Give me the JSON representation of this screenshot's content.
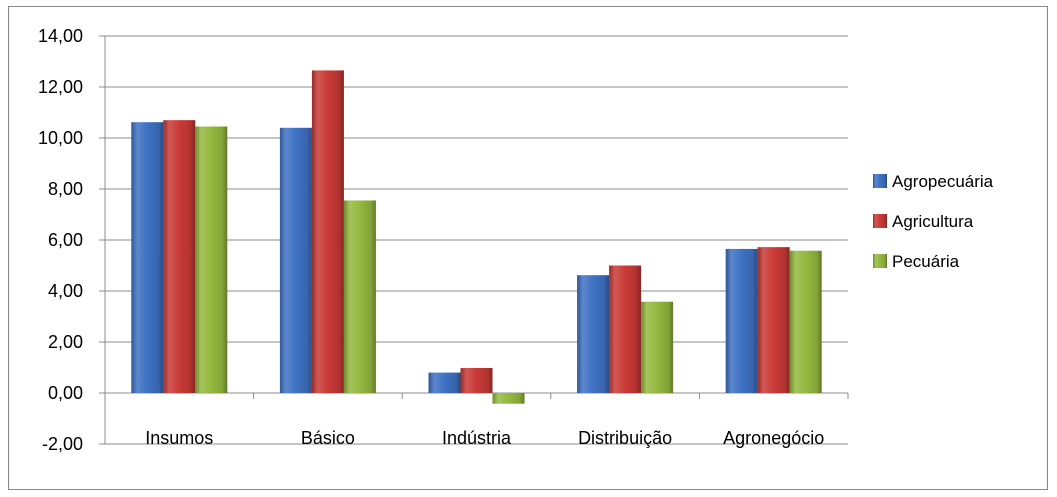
{
  "chart_data": {
    "type": "bar",
    "title": "",
    "xlabel": "",
    "ylabel": "",
    "categories": [
      "Insumos",
      "Básico",
      "Indústria",
      "Distribuição",
      "Agronegócio"
    ],
    "series": [
      {
        "name": "Agropecuária",
        "color": "#3f72c4",
        "values": [
          10.62,
          10.4,
          0.8,
          4.62,
          5.65
        ]
      },
      {
        "name": "Agricultura",
        "color": "#c93a37",
        "values": [
          10.7,
          12.65,
          0.98,
          5.0,
          5.72
        ]
      },
      {
        "name": "Pecuária",
        "color": "#94b93f",
        "values": [
          10.45,
          7.55,
          -0.42,
          3.58,
          5.58
        ]
      }
    ],
    "ylim": [
      -2,
      14
    ],
    "y_ticks": [
      "14,00",
      "12,00",
      "10,00",
      "8,00",
      "6,00",
      "4,00",
      "2,00",
      "0,00",
      "-2,00"
    ],
    "y_tick_values": [
      14,
      12,
      10,
      8,
      6,
      4,
      2,
      0,
      -2
    ],
    "grid": true,
    "legend_position": "right"
  }
}
